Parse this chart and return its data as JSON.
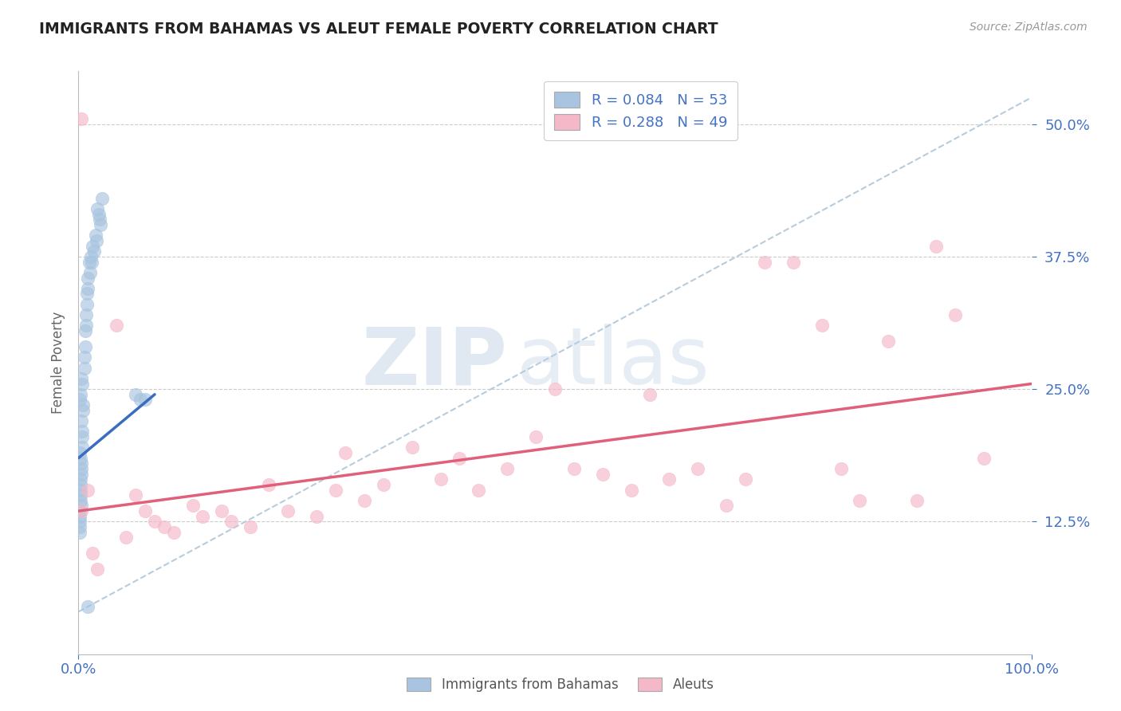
{
  "title": "IMMIGRANTS FROM BAHAMAS VS ALEUT FEMALE POVERTY CORRELATION CHART",
  "source": "Source: ZipAtlas.com",
  "ylabel": "Female Poverty",
  "xlim": [
    0.0,
    1.0
  ],
  "ylim": [
    0.0,
    0.55
  ],
  "x_ticks": [
    0.0,
    1.0
  ],
  "x_tick_labels": [
    "0.0%",
    "100.0%"
  ],
  "y_ticks": [
    0.125,
    0.25,
    0.375,
    0.5
  ],
  "y_tick_labels": [
    "12.5%",
    "25.0%",
    "37.5%",
    "50.0%"
  ],
  "blue_R": 0.084,
  "blue_N": 53,
  "pink_R": 0.288,
  "pink_N": 49,
  "blue_color": "#a8c4e0",
  "pink_color": "#f4b8c8",
  "blue_line_color": "#3a6dbf",
  "pink_line_color": "#e0607a",
  "dashed_line_color": "#b8ccdc",
  "watermark_zip": "ZIP",
  "watermark_atlas": "atlas",
  "background_color": "#ffffff",
  "grid_color": "#cccccc",
  "blue_legend_label": "Immigrants from Bahamas",
  "pink_legend_label": "Aleuts",
  "blue_scatter_x": [
    0.001,
    0.001,
    0.001,
    0.001,
    0.001,
    0.002,
    0.002,
    0.002,
    0.002,
    0.002,
    0.003,
    0.003,
    0.003,
    0.003,
    0.004,
    0.004,
    0.004,
    0.005,
    0.005,
    0.006,
    0.006,
    0.007,
    0.007,
    0.008,
    0.008,
    0.009,
    0.009,
    0.01,
    0.01,
    0.011,
    0.012,
    0.013,
    0.014,
    0.015,
    0.016,
    0.018,
    0.019,
    0.02,
    0.021,
    0.022,
    0.023,
    0.025,
    0.003,
    0.004,
    0.002,
    0.001,
    0.001,
    0.002,
    0.003,
    0.06,
    0.065,
    0.07,
    0.01
  ],
  "blue_scatter_y": [
    0.135,
    0.13,
    0.125,
    0.12,
    0.115,
    0.165,
    0.16,
    0.155,
    0.15,
    0.145,
    0.18,
    0.175,
    0.17,
    0.22,
    0.21,
    0.205,
    0.195,
    0.235,
    0.23,
    0.28,
    0.27,
    0.305,
    0.29,
    0.32,
    0.31,
    0.34,
    0.33,
    0.355,
    0.345,
    0.37,
    0.36,
    0.375,
    0.37,
    0.385,
    0.38,
    0.395,
    0.39,
    0.42,
    0.415,
    0.41,
    0.405,
    0.43,
    0.26,
    0.255,
    0.245,
    0.24,
    0.19,
    0.185,
    0.14,
    0.245,
    0.24,
    0.24,
    0.045
  ],
  "pink_scatter_x": [
    0.003,
    0.015,
    0.02,
    0.05,
    0.07,
    0.08,
    0.1,
    0.12,
    0.15,
    0.18,
    0.2,
    0.22,
    0.25,
    0.27,
    0.28,
    0.3,
    0.32,
    0.35,
    0.38,
    0.4,
    0.42,
    0.45,
    0.48,
    0.5,
    0.52,
    0.55,
    0.58,
    0.6,
    0.62,
    0.65,
    0.68,
    0.7,
    0.72,
    0.75,
    0.78,
    0.8,
    0.82,
    0.85,
    0.88,
    0.9,
    0.92,
    0.95,
    0.003,
    0.01,
    0.04,
    0.06,
    0.09,
    0.13,
    0.16
  ],
  "pink_scatter_y": [
    0.135,
    0.095,
    0.08,
    0.11,
    0.135,
    0.125,
    0.115,
    0.14,
    0.135,
    0.12,
    0.16,
    0.135,
    0.13,
    0.155,
    0.19,
    0.145,
    0.16,
    0.195,
    0.165,
    0.185,
    0.155,
    0.175,
    0.205,
    0.25,
    0.175,
    0.17,
    0.155,
    0.245,
    0.165,
    0.175,
    0.14,
    0.165,
    0.37,
    0.37,
    0.31,
    0.175,
    0.145,
    0.295,
    0.145,
    0.385,
    0.32,
    0.185,
    0.505,
    0.155,
    0.31,
    0.15,
    0.12,
    0.13,
    0.125
  ],
  "blue_trend_x": [
    0.0,
    0.08
  ],
  "blue_trend_y": [
    0.185,
    0.245
  ],
  "pink_trend_x": [
    0.0,
    1.0
  ],
  "pink_trend_y": [
    0.135,
    0.255
  ],
  "dashed_trend_x": [
    0.0,
    1.0
  ],
  "dashed_trend_y": [
    0.04,
    0.525
  ]
}
